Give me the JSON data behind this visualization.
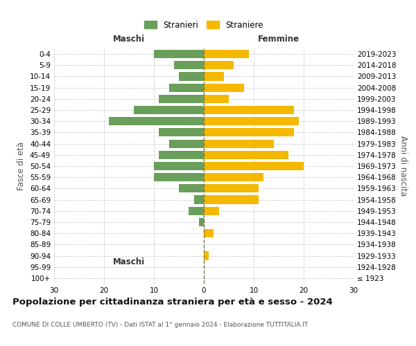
{
  "age_groups": [
    "100+",
    "95-99",
    "90-94",
    "85-89",
    "80-84",
    "75-79",
    "70-74",
    "65-69",
    "60-64",
    "55-59",
    "50-54",
    "45-49",
    "40-44",
    "35-39",
    "30-34",
    "25-29",
    "20-24",
    "15-19",
    "10-14",
    "5-9",
    "0-4"
  ],
  "birth_years": [
    "≤ 1923",
    "1924-1928",
    "1929-1933",
    "1934-1938",
    "1939-1943",
    "1944-1948",
    "1949-1953",
    "1954-1958",
    "1959-1963",
    "1964-1968",
    "1969-1973",
    "1974-1978",
    "1979-1983",
    "1984-1988",
    "1989-1993",
    "1994-1998",
    "1999-2003",
    "2004-2008",
    "2009-2013",
    "2014-2018",
    "2019-2023"
  ],
  "males": [
    0,
    0,
    0,
    0,
    0,
    1,
    3,
    2,
    5,
    10,
    10,
    9,
    7,
    9,
    19,
    14,
    9,
    7,
    5,
    6,
    10
  ],
  "females": [
    0,
    0,
    1,
    0,
    2,
    0,
    3,
    11,
    11,
    12,
    20,
    17,
    14,
    18,
    19,
    18,
    5,
    8,
    4,
    6,
    9
  ],
  "male_color": "#6a9e5b",
  "female_color": "#f5b800",
  "background_color": "#ffffff",
  "grid_color": "#cccccc",
  "dashed_line_color": "#7a7a4a",
  "title": "Popolazione per cittadinanza straniera per età e sesso - 2024",
  "subtitle": "COMUNE DI COLLE UMBERTO (TV) - Dati ISTAT al 1° gennaio 2024 - Elaborazione TUTTITALIA.IT",
  "xlabel_left": "Maschi",
  "xlabel_right": "Femmine",
  "ylabel_left": "Fasce di età",
  "ylabel_right": "Anni di nascita",
  "legend_male": "Stranieri",
  "legend_female": "Straniere",
  "xlim": 30,
  "title_fontsize": 9.5,
  "subtitle_fontsize": 6.5,
  "label_fontsize": 8.5,
  "tick_fontsize": 7.5,
  "bar_height": 0.75
}
